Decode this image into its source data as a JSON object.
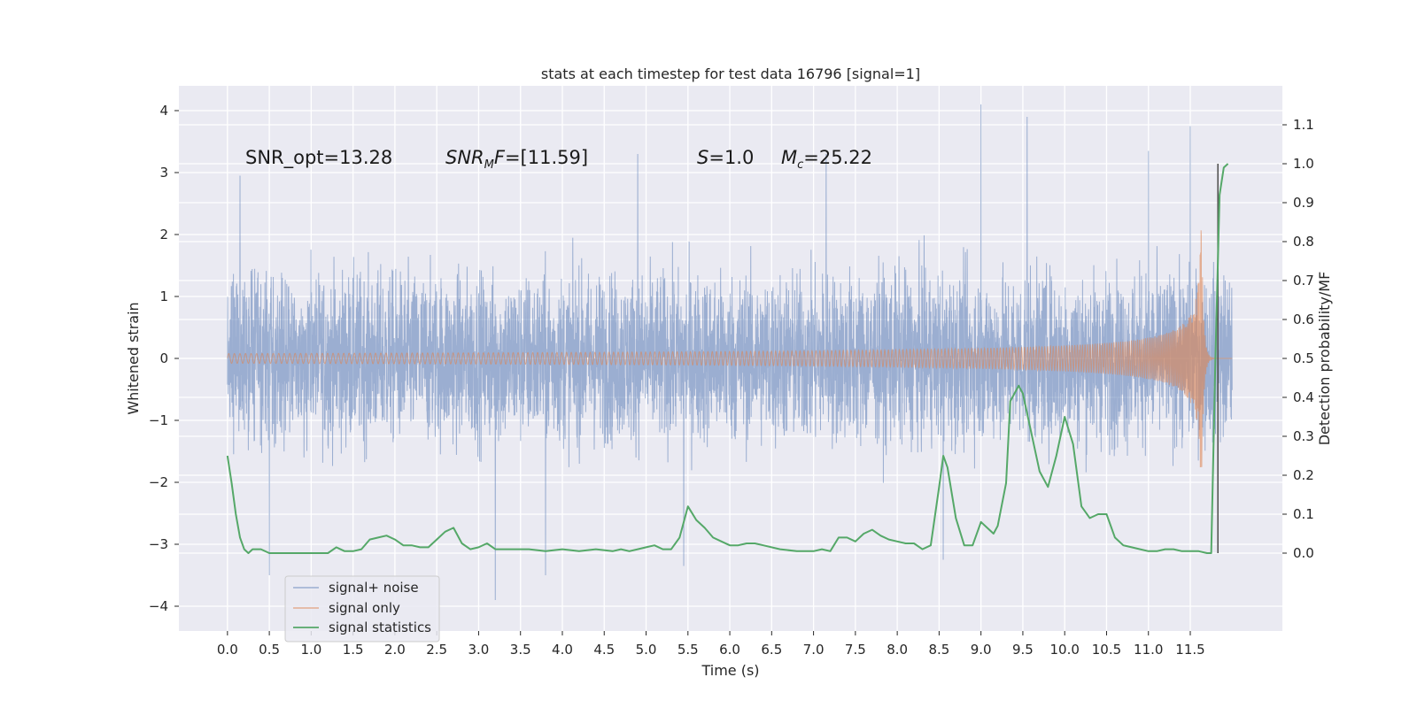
{
  "chart_data": {
    "type": "line",
    "title": "stats at each timestep for test data 16796 [signal=1]",
    "xlabel": "Time (s)",
    "ylabel": "Whitened strain",
    "ylabel_right": "Detection probability/MF",
    "xlim": [
      -0.58,
      12.6
    ],
    "ylim": [
      -4.4,
      4.4
    ],
    "ylim_right": [
      -0.2,
      1.2
    ],
    "x_ticks": [
      0.0,
      0.5,
      1.0,
      1.5,
      2.0,
      2.5,
      3.0,
      3.5,
      4.0,
      4.5,
      5.0,
      5.5,
      6.0,
      6.5,
      7.0,
      7.5,
      8.0,
      8.5,
      9.0,
      9.5,
      10.0,
      10.5,
      11.0,
      11.5
    ],
    "x_tick_labels": [
      "0.0",
      "0.5",
      "1.0",
      "1.5",
      "2.0",
      "2.5",
      "3.0",
      "3.5",
      "4.0",
      "4.5",
      "5.0",
      "5.5",
      "6.0",
      "6.5",
      "7.0",
      "7.5",
      "8.0",
      "8.5",
      "9.0",
      "9.5",
      "10.0",
      "10.5",
      "11.0",
      "11.5"
    ],
    "y_ticks": [
      -4,
      -3,
      -2,
      -1,
      0,
      1,
      2,
      3,
      4
    ],
    "y_tick_labels": [
      "−4",
      "−3",
      "−2",
      "−1",
      "0",
      "1",
      "2",
      "3",
      "4"
    ],
    "y_right_ticks": [
      0.0,
      0.1,
      0.2,
      0.3,
      0.4,
      0.5,
      0.6,
      0.7,
      0.8,
      0.9,
      1.0,
      1.1
    ],
    "y_right_tick_labels": [
      "0.0",
      "0.1",
      "0.2",
      "0.3",
      "0.4",
      "0.5",
      "0.6",
      "0.7",
      "0.8",
      "0.9",
      "1.0",
      "1.1"
    ],
    "grid": true,
    "annotations": {
      "snr_opt": "SNR_opt=13.28",
      "snr_mf_name": "SNR",
      "snr_mf_sub": "M",
      "snr_mf_tail": "F",
      "snr_mf_value": "=[11.59]",
      "s_name": "S",
      "s_value": "=1.0",
      "mc_name": "M",
      "mc_sub": "c",
      "mc_value": "=25.22"
    },
    "legend": {
      "placement": "lower-left",
      "entries": [
        "signal+ noise",
        "signal only",
        "signal statistics"
      ]
    },
    "series": [
      {
        "name": "signal+ noise",
        "color": "#4c72b0",
        "axis": "left",
        "x_range": [
          0.0,
          12.0
        ],
        "y_range": [
          -3.9,
          4.1
        ],
        "peaks": [
          {
            "x": 9.0,
            "y": 4.1
          },
          {
            "x": 9.55,
            "y": 3.9
          },
          {
            "x": 11.5,
            "y": 3.75
          },
          {
            "x": 11.0,
            "y": 3.35
          },
          {
            "x": 4.9,
            "y": 3.3
          },
          {
            "x": 7.15,
            "y": 3.3
          },
          {
            "x": 0.15,
            "y": 2.95
          },
          {
            "x": 3.2,
            "y": -3.9
          },
          {
            "x": 0.5,
            "y": -3.5
          },
          {
            "x": 3.8,
            "y": -3.5
          },
          {
            "x": 5.45,
            "y": -3.35
          },
          {
            "x": 8.55,
            "y": -3.25
          }
        ]
      },
      {
        "name": "signal only",
        "color": "#dd8452",
        "axis": "left",
        "x_range": [
          0.0,
          12.0
        ],
        "peak": {
          "x": 11.63,
          "y": 2.45
        }
      },
      {
        "name": "signal statistics",
        "color": "#55a868",
        "axis": "right",
        "x": [
          0.0,
          0.05,
          0.1,
          0.15,
          0.2,
          0.25,
          0.3,
          0.4,
          0.5,
          0.6,
          0.7,
          0.8,
          0.9,
          1.0,
          1.1,
          1.2,
          1.3,
          1.4,
          1.5,
          1.6,
          1.7,
          1.8,
          1.9,
          2.0,
          2.1,
          2.2,
          2.3,
          2.4,
          2.5,
          2.6,
          2.7,
          2.8,
          2.9,
          3.0,
          3.1,
          3.2,
          3.3,
          3.4,
          3.6,
          3.8,
          4.0,
          4.2,
          4.4,
          4.6,
          4.7,
          4.8,
          4.9,
          5.0,
          5.1,
          5.2,
          5.3,
          5.4,
          5.5,
          5.6,
          5.7,
          5.8,
          5.9,
          6.0,
          6.1,
          6.2,
          6.3,
          6.4,
          6.6,
          6.8,
          7.0,
          7.1,
          7.2,
          7.3,
          7.4,
          7.5,
          7.6,
          7.7,
          7.8,
          7.9,
          8.0,
          8.1,
          8.2,
          8.3,
          8.4,
          8.5,
          8.55,
          8.6,
          8.7,
          8.8,
          8.9,
          9.0,
          9.1,
          9.15,
          9.2,
          9.3,
          9.35,
          9.45,
          9.5,
          9.6,
          9.7,
          9.8,
          9.9,
          10.0,
          10.1,
          10.2,
          10.3,
          10.4,
          10.5,
          10.6,
          10.7,
          10.8,
          10.9,
          11.0,
          11.1,
          11.2,
          11.3,
          11.4,
          11.5,
          11.6,
          11.7,
          11.75,
          11.8,
          11.85,
          11.9,
          11.95
        ],
        "y": [
          0.25,
          0.18,
          0.1,
          0.04,
          0.01,
          0.0,
          0.01,
          0.01,
          0.0,
          0.0,
          0.0,
          0.0,
          0.0,
          0.0,
          0.0,
          0.0,
          0.015,
          0.005,
          0.005,
          0.01,
          0.035,
          0.04,
          0.045,
          0.035,
          0.02,
          0.02,
          0.015,
          0.015,
          0.035,
          0.055,
          0.065,
          0.025,
          0.01,
          0.015,
          0.025,
          0.01,
          0.01,
          0.01,
          0.01,
          0.005,
          0.01,
          0.005,
          0.01,
          0.005,
          0.01,
          0.005,
          0.01,
          0.015,
          0.02,
          0.01,
          0.01,
          0.04,
          0.12,
          0.085,
          0.065,
          0.04,
          0.03,
          0.02,
          0.02,
          0.025,
          0.025,
          0.02,
          0.01,
          0.005,
          0.005,
          0.01,
          0.005,
          0.04,
          0.04,
          0.03,
          0.05,
          0.06,
          0.045,
          0.035,
          0.03,
          0.025,
          0.025,
          0.01,
          0.02,
          0.17,
          0.25,
          0.22,
          0.09,
          0.02,
          0.02,
          0.08,
          0.06,
          0.05,
          0.07,
          0.18,
          0.39,
          0.43,
          0.41,
          0.31,
          0.21,
          0.17,
          0.25,
          0.35,
          0.28,
          0.12,
          0.09,
          0.1,
          0.1,
          0.04,
          0.02,
          0.015,
          0.01,
          0.005,
          0.005,
          0.01,
          0.01,
          0.005,
          0.005,
          0.005,
          0.0,
          0.0,
          0.5,
          0.92,
          0.99,
          1.0
        ]
      }
    ],
    "vertical_marker": {
      "x": 11.83,
      "y_range_right": [
        0.0,
        1.0
      ],
      "color": "#555555"
    }
  }
}
